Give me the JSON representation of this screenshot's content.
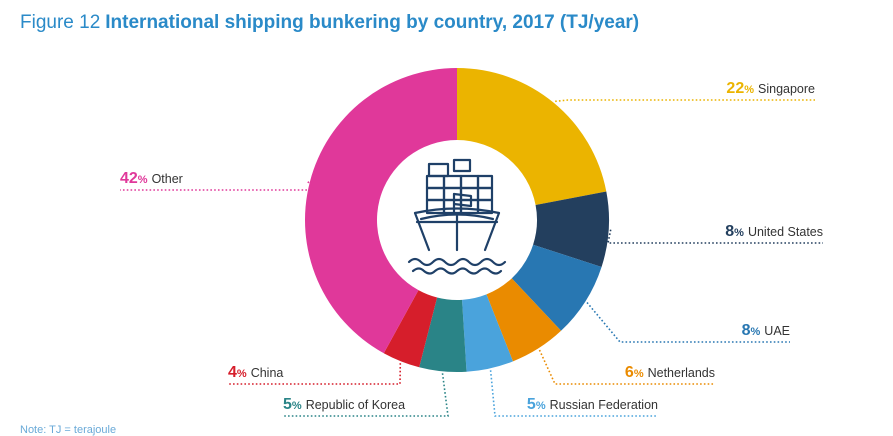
{
  "header": {
    "figure_number": "Figure 12",
    "title": "International shipping bunkering by country, 2017 (TJ/year)"
  },
  "note": "Note: TJ = terajoule",
  "center_icon": "cargo-ship-icon",
  "chart_data": {
    "type": "donut",
    "title": "International shipping bunkering by country, 2017 (TJ/year)",
    "unit_suffix": "%",
    "slices": [
      {
        "label": "Singapore",
        "value": 22,
        "color": "#ebb400"
      },
      {
        "label": "United States",
        "value": 8,
        "color": "#233f5e"
      },
      {
        "label": "UAE",
        "value": 8,
        "color": "#2877b2"
      },
      {
        "label": "Netherlands",
        "value": 6,
        "color": "#ea8b00"
      },
      {
        "label": "Russian Federation",
        "value": 5,
        "color": "#4aa3dc"
      },
      {
        "label": "Republic of Korea",
        "value": 5,
        "color": "#2a8487"
      },
      {
        "label": "China",
        "value": 4,
        "color": "#d61e2b"
      },
      {
        "label": "Other",
        "value": 42,
        "color": "#e0389a"
      }
    ]
  }
}
